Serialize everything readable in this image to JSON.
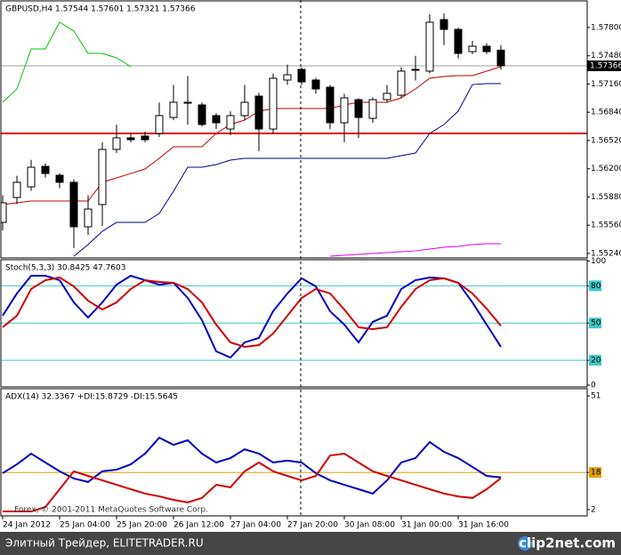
{
  "chart_data": [
    {
      "type": "candlestick",
      "title": "GBPUSD,H4  1.57544 1.57601 1.57321 1.57366",
      "categories": [
        "24 Jan 2012",
        null,
        null,
        null,
        "25 Jan 04:00",
        null,
        null,
        null,
        "25 Jan 20:00",
        null,
        null,
        null,
        "26 Jan 12:00",
        null,
        null,
        null,
        "27 Jan 04:00",
        null,
        null,
        null,
        "27 Jan 20:00",
        null,
        null,
        null,
        "30 Jan 08:00",
        null,
        null,
        null,
        "31 Jan 00:00",
        null,
        null,
        null,
        "31 Jan 16:00",
        null,
        null,
        null
      ],
      "open": [
        1.55592,
        1.55874,
        1.55995,
        1.56227,
        1.56126,
        1.56046,
        1.55542,
        1.55794,
        1.56419,
        1.5655,
        1.5657,
        1.566,
        1.56781,
        1.56953,
        1.56923,
        1.56802,
        1.5665,
        1.56802,
        1.57023,
        1.5665,
        1.57205,
        1.57326,
        1.57205,
        1.57124,
        1.56721,
        1.56983,
        1.56771,
        1.56983,
        1.57033,
        1.57326,
        1.57306,
        1.5789,
        1.57779,
        1.57527,
        1.57588,
        1.57544
      ],
      "high": [
        1.559,
        1.5612,
        1.563,
        1.5626,
        1.5615,
        1.5608,
        1.559,
        1.565,
        1.567,
        1.566,
        1.5662,
        1.5695,
        1.5715,
        1.5725,
        1.5695,
        1.5683,
        1.5685,
        1.5715,
        1.5706,
        1.5728,
        1.5738,
        1.5735,
        1.5723,
        1.5715,
        1.5705,
        1.57,
        1.5701,
        1.5715,
        1.5735,
        1.5748,
        1.5795,
        1.5796,
        1.578,
        1.5765,
        1.5762,
        1.57601
      ],
      "low": [
        1.555,
        1.558,
        1.5595,
        1.561,
        1.5598,
        1.553,
        1.5545,
        1.5555,
        1.5638,
        1.565,
        1.565,
        1.5656,
        1.5675,
        1.567,
        1.5668,
        1.5665,
        1.5658,
        1.5675,
        1.564,
        1.566,
        1.5715,
        1.5715,
        1.5705,
        1.5665,
        1.565,
        1.5655,
        1.5672,
        1.5695,
        1.57,
        1.572,
        1.5728,
        1.576,
        1.5745,
        1.575,
        1.575,
        1.57321
      ],
      "close": [
        1.55814,
        1.56046,
        1.56217,
        1.56146,
        1.56046,
        1.55542,
        1.55743,
        1.56419,
        1.5655,
        1.56529,
        1.56529,
        1.56802,
        1.56953,
        1.56943,
        1.56701,
        1.56721,
        1.56802,
        1.56953,
        1.5665,
        1.57225,
        1.57265,
        1.57185,
        1.57104,
        1.56721,
        1.57003,
        1.56781,
        1.56983,
        1.57054,
        1.57306,
        1.5732,
        1.5786,
        1.57779,
        1.57507,
        1.57588,
        1.57527,
        1.57366
      ],
      "up_color": "#ffffff",
      "down_color": "#000000",
      "series": [
        {
          "color": "#c00000",
          "values": [
            1.55794,
            1.55814,
            1.55834,
            1.55834,
            1.55834,
            1.55834,
            1.55834,
            1.56046,
            1.56096,
            1.56146,
            1.56197,
            1.56318,
            1.56449,
            1.56449,
            1.56449,
            1.566,
            1.56701,
            1.56751,
            1.56852,
            1.56882,
            1.56882,
            1.56882,
            1.56882,
            1.56882,
            1.56923,
            1.56953,
            1.56953,
            1.56953,
            1.57003,
            1.57104,
            1.57225,
            1.57245,
            1.57255,
            1.57255,
            1.57306,
            1.57356
          ]
        },
        {
          "color": "#000090",
          "values": [
            null,
            null,
            null,
            null,
            null,
            1.55209,
            1.5534,
            1.55491,
            1.55592,
            1.55592,
            1.55592,
            1.55693,
            1.55945,
            1.56217,
            1.56217,
            1.56247,
            1.56298,
            1.56318,
            1.56318,
            1.56318,
            1.56318,
            1.56318,
            1.56318,
            1.56318,
            1.56318,
            1.56318,
            1.56318,
            1.56318,
            1.56348,
            1.56378,
            1.566,
            1.56701,
            1.56852,
            1.57154,
            1.57164,
            1.57164
          ]
        },
        {
          "color": "#00c000",
          "values": [
            1.56953,
            1.57104,
            1.57558,
            1.57558,
            1.5786,
            1.57759,
            1.57507,
            1.57507,
            1.57457,
            1.57356,
            null,
            null,
            null,
            null,
            null,
            null,
            null,
            null,
            null,
            null,
            null,
            null,
            null,
            null,
            null,
            null,
            null,
            null,
            null,
            null,
            null,
            null,
            null,
            null,
            null,
            null
          ]
        },
        {
          "color": "#e000e0",
          "values": [
            null,
            null,
            null,
            null,
            null,
            null,
            null,
            null,
            null,
            null,
            null,
            null,
            null,
            null,
            null,
            null,
            null,
            null,
            null,
            null,
            null,
            null,
            null,
            1.55209,
            1.55219,
            1.55229,
            1.55239,
            1.55249,
            1.55259,
            1.55269,
            1.5529,
            1.5531,
            1.5532,
            1.5534,
            1.5535,
            1.5535
          ]
        }
      ],
      "levels": [
        {
          "value": 1.566,
          "color": "#e00000"
        }
      ],
      "last_price": {
        "value": 1.57366,
        "label": "1.57366"
      },
      "ylim": [
        1.55189,
        1.58112
      ],
      "yticks": [
        {
          "value": 1.578,
          "label": "1.57800"
        },
        {
          "value": 1.5748,
          "label": "1.57480"
        },
        {
          "value": 1.5716,
          "label": "1.57160"
        },
        {
          "value": 1.5684,
          "label": "1.56840"
        },
        {
          "value": 1.5652,
          "label": "1.56520"
        },
        {
          "value": 1.562,
          "label": "1.56200"
        },
        {
          "value": 1.5588,
          "label": "1.55880"
        },
        {
          "value": 1.5556,
          "label": "1.55560"
        },
        {
          "value": 1.5524,
          "label": "1.55240"
        }
      ]
    },
    {
      "type": "line",
      "title": "Stoch(5,3,3) 30.8425 47.7603",
      "series": [
        {
          "color": "#0000c0",
          "values": [
            55.9,
            73.8,
            88.1,
            88.1,
            84.5,
            66.6,
            54.4,
            66.6,
            80.9,
            88.1,
            84.5,
            80.9,
            82.4,
            70.2,
            52.3,
            27.2,
            22.2,
            34.4,
            38.0,
            59.5,
            73.8,
            86.0,
            79.5,
            59.5,
            48.7,
            34.4,
            50.9,
            55.9,
            77.4,
            84.5,
            86.7,
            86.0,
            82.4,
            66.6,
            48.7,
            30.8425
          ]
        },
        {
          "color": "#d00000",
          "values": [
            46.6,
            55.9,
            77.4,
            84.5,
            86.7,
            79.5,
            68.0,
            60.9,
            66.6,
            77.4,
            84.5,
            83.1,
            82.4,
            77.4,
            66.6,
            48.7,
            34.4,
            30.8,
            32.2,
            41.5,
            55.9,
            70.2,
            77.4,
            73.8,
            60.9,
            46.6,
            45.1,
            46.6,
            63.0,
            77.4,
            84.5,
            86.0,
            82.4,
            73.8,
            61.6,
            47.7603
          ]
        }
      ],
      "levels": [
        80,
        50,
        20
      ],
      "level_color": "#40c8c8",
      "ylim": [
        0,
        101
      ],
      "yticks": [
        100,
        80,
        50,
        20,
        0
      ]
    },
    {
      "type": "line",
      "title": "ADX(14) 32.3367 +DI:15.8729 -DI:15.5645",
      "annotation": "Forex, © 2001-2011 MetaQuotes Software Corp.",
      "series": [
        {
          "color": "#0000c0",
          "values": [
            17.7,
            21.5,
            26.1,
            22.3,
            18.5,
            15.4,
            13.9,
            18.5,
            19.2,
            21.5,
            26.1,
            33.0,
            29.9,
            31.9,
            26.1,
            22.3,
            24.2,
            28.0,
            26.1,
            22.3,
            23.1,
            22.3,
            17.7,
            14.6,
            12.7,
            10.8,
            8.9,
            14.6,
            22.3,
            24.2,
            31.1,
            26.9,
            24.2,
            20.4,
            16.5,
            15.8729
          ]
        },
        {
          "color": "#d00000",
          "values": [
            1.2,
            1.2,
            1.2,
            3.1,
            10.8,
            18.5,
            16.5,
            14.6,
            12.7,
            10.8,
            8.9,
            7.7,
            6.2,
            5.1,
            7.0,
            12.7,
            11.6,
            18.5,
            22.3,
            18.5,
            16.5,
            14.6,
            16.5,
            25.3,
            26.1,
            22.3,
            18.5,
            16.5,
            14.6,
            12.7,
            10.8,
            8.9,
            7.7,
            7.0,
            10.8,
            15.5645
          ]
        }
      ],
      "levels": [
        18
      ],
      "level_color": "#e0a000",
      "ylim": [
        -0.7,
        54.1
      ],
      "yticks": [
        51,
        18,
        2
      ]
    }
  ],
  "footer": {
    "left": "Элитный Трейдер, ELITETRADER.RU",
    "right": "clip2net.com"
  }
}
